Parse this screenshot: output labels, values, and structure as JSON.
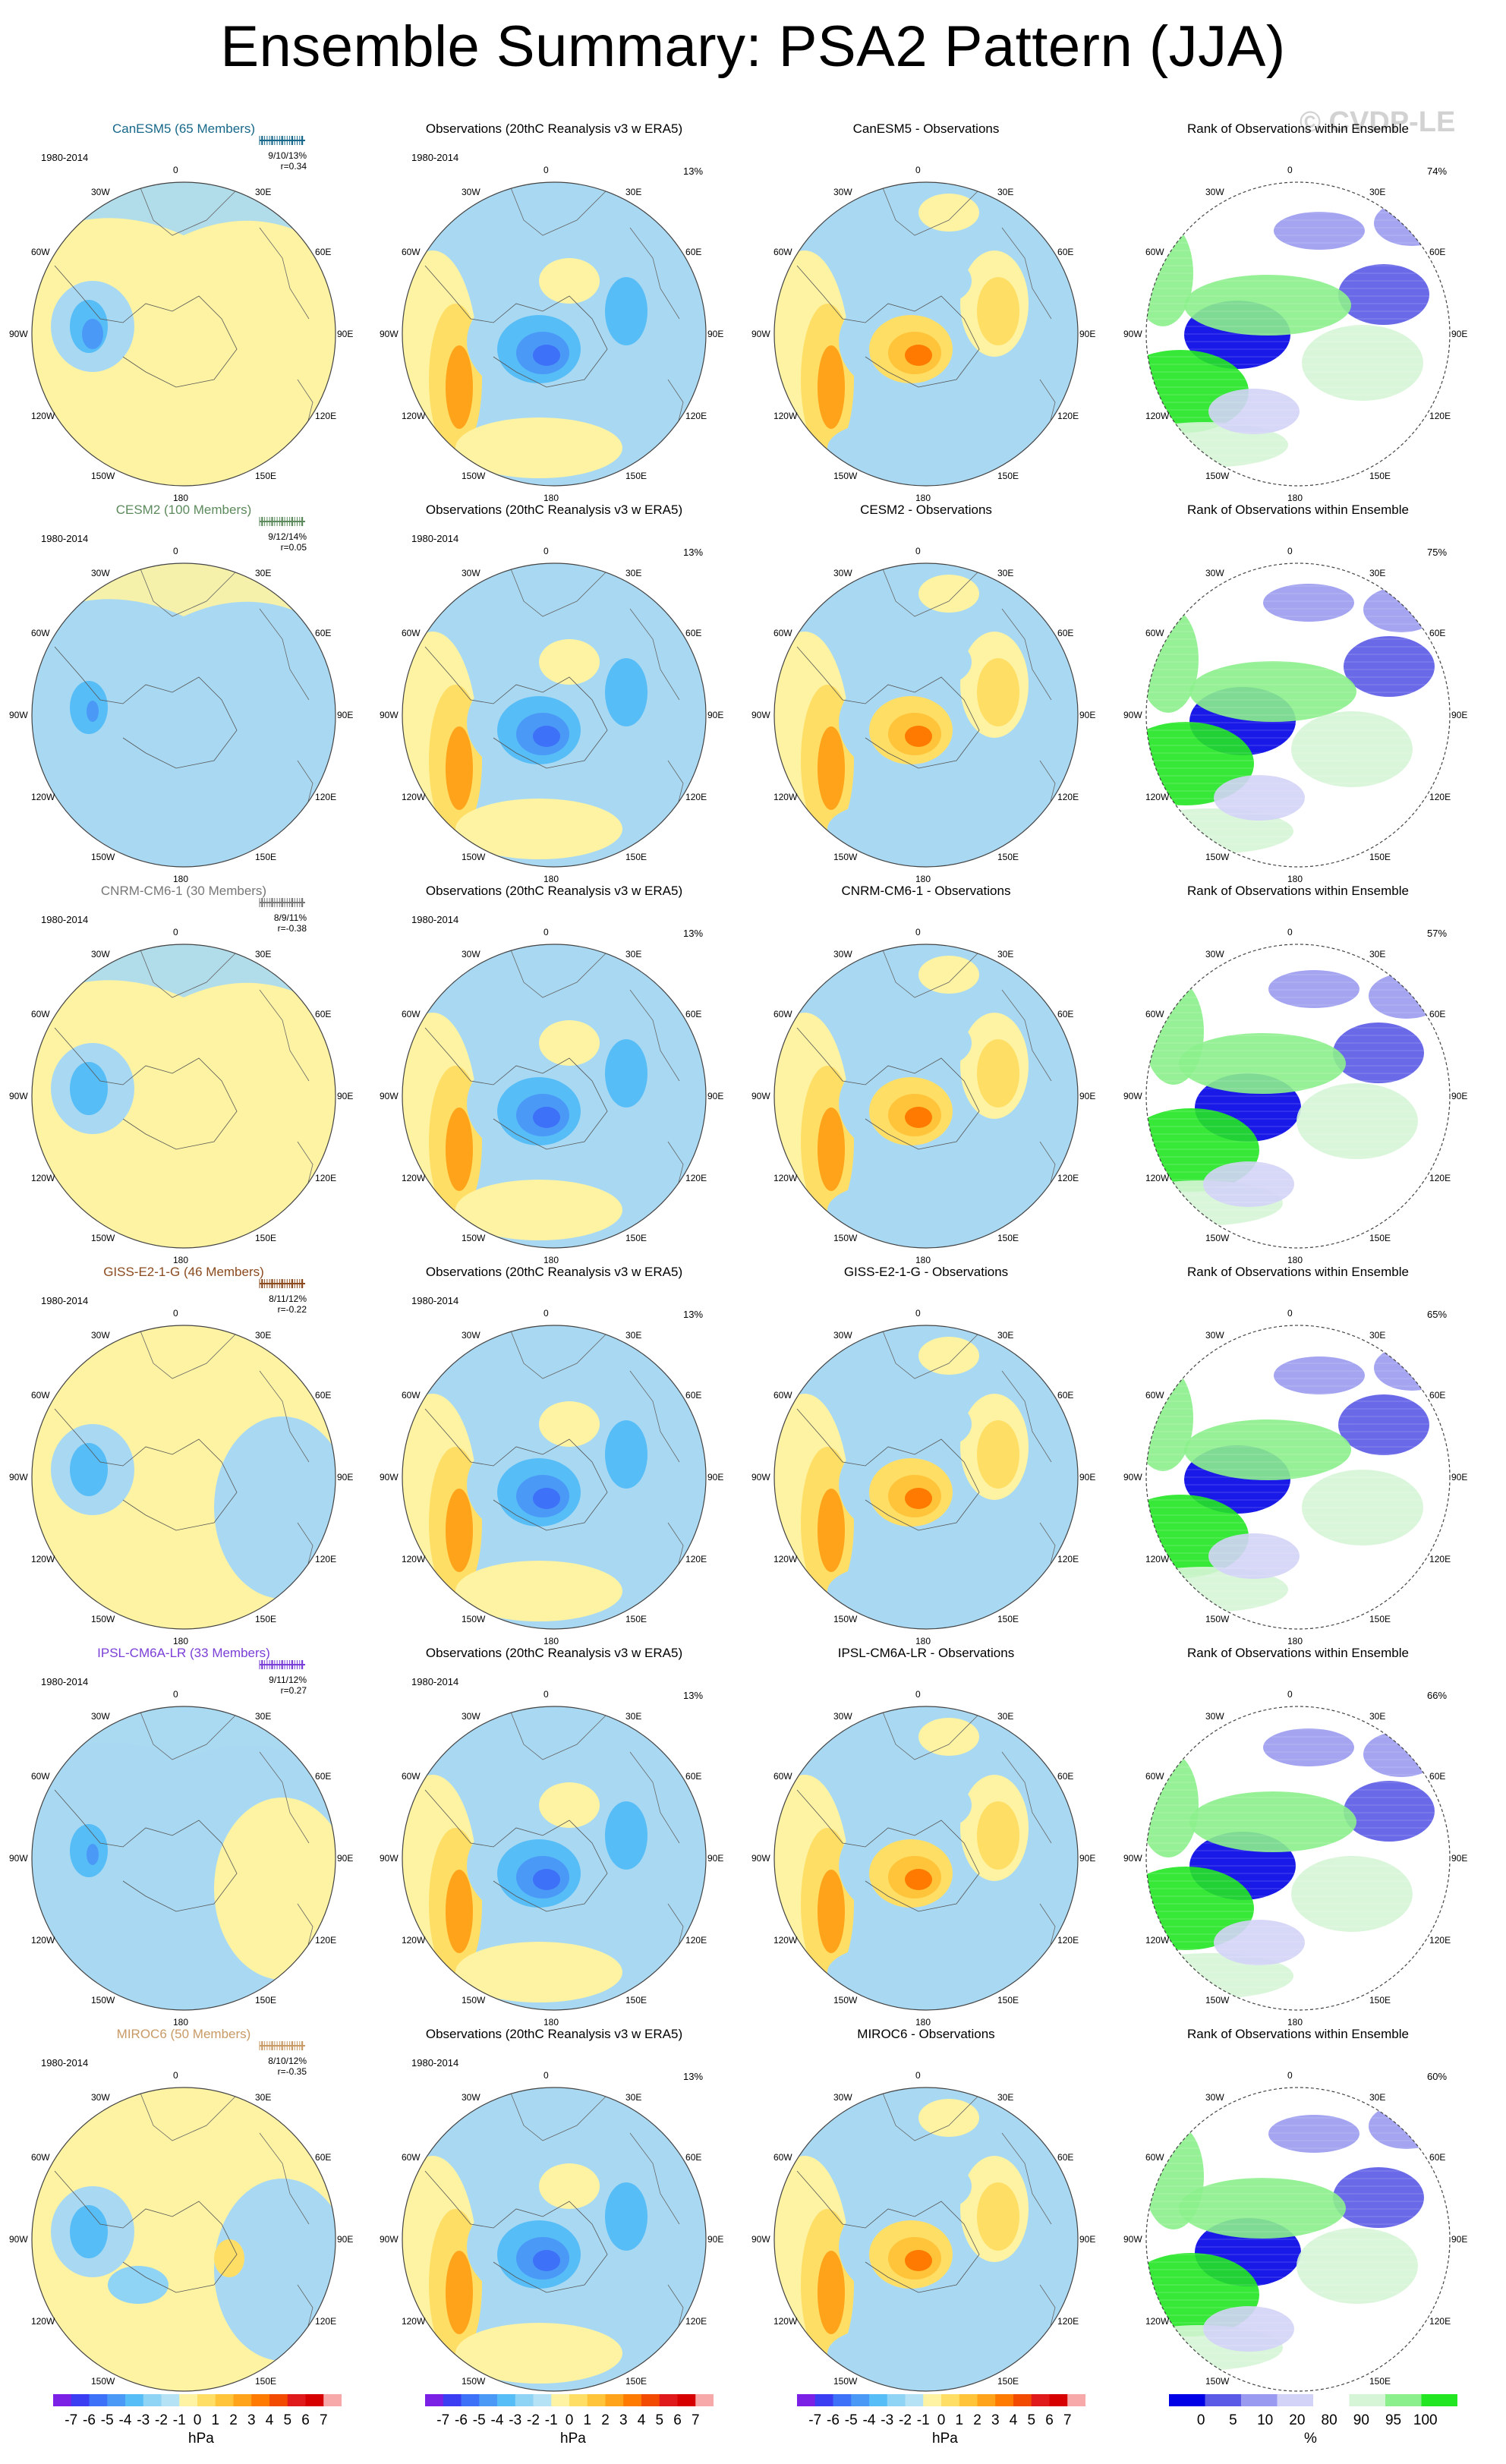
{
  "title": "Ensemble Summary: PSA2 Pattern (JJA)",
  "watermark": "© CVDP-LE",
  "period": "1980-2014",
  "lon_labels": [
    "0",
    "30E",
    "60E",
    "90E",
    "120E",
    "150E",
    "180",
    "150W",
    "120W",
    "90W",
    "60W",
    "30W"
  ],
  "obs_title": "Observations (20thC Reanalysis v3 w ERA5)",
  "obs_pct": "13%",
  "rank_title": "Rank of Observations within Ensemble",
  "colors": {
    "ens_positive": "#fdf3a3",
    "ens_negative": "#a9d9f2",
    "diverging_scale": [
      "#7b21e6",
      "#3a3df2",
      "#3d71f7",
      "#4b99f7",
      "#57bdf7",
      "#8fd3f5",
      "#b5e2f5",
      "#fdf3a3",
      "#ffde66",
      "#ffc43a",
      "#ffa31a",
      "#ff7a00",
      "#f24a00",
      "#e01a1a",
      "#d60000",
      "#f7a8a8"
    ],
    "rank_scale": [
      "#0000e6",
      "#5a5ae6",
      "#9a9af0",
      "#d3d3f7",
      "#ffffff",
      "#d6f5d6",
      "#8bef8b",
      "#22e622"
    ]
  },
  "models": [
    {
      "name": "CanESM5 (65 Members)",
      "color": "#17688a",
      "stats": "9/10/13%",
      "r": "r=0.34",
      "diff_title": "CanESM5 - Observations",
      "rank_pct": "74%"
    },
    {
      "name": "CESM2 (100 Members)",
      "color": "#5c8a5c",
      "stats": "9/12/14%",
      "r": "r=0.05",
      "diff_title": "CESM2 - Observations",
      "rank_pct": "75%"
    },
    {
      "name": "CNRM-CM6-1 (30 Members)",
      "color": "#777777",
      "stats": "8/9/11%",
      "r": "r=-0.38",
      "diff_title": "CNRM-CM6-1 - Observations",
      "rank_pct": "57%"
    },
    {
      "name": "GISS-E2-1-G (46 Members)",
      "color": "#8a4a1e",
      "stats": "8/11/12%",
      "r": "r=-0.22",
      "diff_title": "GISS-E2-1-G - Observations",
      "rank_pct": "65%"
    },
    {
      "name": "IPSL-CM6A-LR (33 Members)",
      "color": "#7a3fd6",
      "stats": "9/11/12%",
      "r": "r=0.27",
      "diff_title": "IPSL-CM6A-LR - Observations",
      "rank_pct": "66%"
    },
    {
      "name": "MIROC6 (50 Members)",
      "color": "#c89a66",
      "stats": "8/10/12%",
      "r": "r=-0.35",
      "diff_title": "MIROC6 - Observations",
      "rank_pct": "60%"
    }
  ],
  "colorbar_hpa": {
    "ticks": [
      "-7",
      "-6",
      "-5",
      "-4",
      "-3",
      "-2",
      "-1",
      "0",
      "1",
      "2",
      "3",
      "4",
      "5",
      "6",
      "7"
    ],
    "unit": "hPa"
  },
  "colorbar_rank": {
    "ticks": [
      "0",
      "5",
      "10",
      "20",
      "80",
      "90",
      "95",
      "100"
    ],
    "unit": "%"
  }
}
